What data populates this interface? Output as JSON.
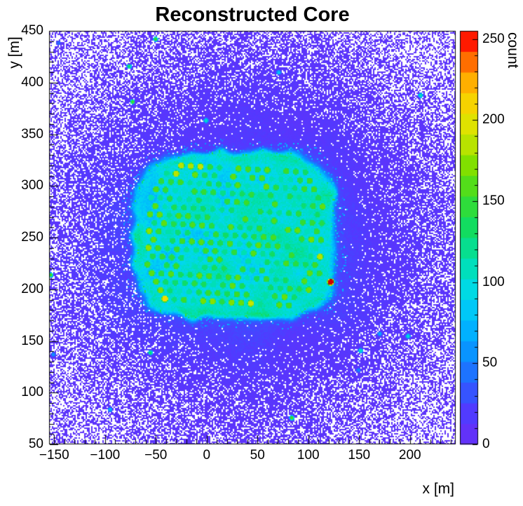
{
  "chart_data": {
    "type": "heatmap",
    "title": "Reconstructed Core",
    "xlabel": "x [m]",
    "ylabel": "y [m]",
    "zlabel": "count",
    "x_range": [
      -155,
      245
    ],
    "y_range": [
      50,
      450
    ],
    "z_range": [
      0,
      255
    ],
    "x_ticks": [
      {
        "v": -150,
        "label": "−150"
      },
      {
        "v": -100,
        "label": "−100"
      },
      {
        "v": -50,
        "label": "−50"
      },
      {
        "v": 0,
        "label": "0"
      },
      {
        "v": 50,
        "label": "50"
      },
      {
        "v": 100,
        "label": "100"
      },
      {
        "v": 150,
        "label": "150"
      },
      {
        "v": 200,
        "label": "200"
      }
    ],
    "y_ticks": [
      {
        "v": 50,
        "label": "50"
      },
      {
        "v": 100,
        "label": "100"
      },
      {
        "v": 150,
        "label": "150"
      },
      {
        "v": 200,
        "label": "200"
      },
      {
        "v": 250,
        "label": "250"
      },
      {
        "v": 300,
        "label": "300"
      },
      {
        "v": 350,
        "label": "350"
      },
      {
        "v": 400,
        "label": "400"
      },
      {
        "v": 450,
        "label": "450"
      }
    ],
    "z_ticks": [
      {
        "v": 0,
        "label": "0"
      },
      {
        "v": 50,
        "label": "50"
      },
      {
        "v": 100,
        "label": "100"
      },
      {
        "v": 150,
        "label": "150"
      },
      {
        "v": 200,
        "label": "200"
      },
      {
        "v": 250,
        "label": "250"
      }
    ],
    "minor_tick_step": 10,
    "z_minor_step": 10,
    "palette_bands": 20,
    "palette_stops": [
      {
        "t": 0.0,
        "color": "#6a2ef5"
      },
      {
        "t": 0.07,
        "color": "#5438ff"
      },
      {
        "t": 0.14,
        "color": "#2e5cff"
      },
      {
        "t": 0.21,
        "color": "#0b8bff"
      },
      {
        "t": 0.28,
        "color": "#00b4ff"
      },
      {
        "t": 0.36,
        "color": "#00d8f0"
      },
      {
        "t": 0.44,
        "color": "#00e0b0"
      },
      {
        "t": 0.52,
        "color": "#0fdc64"
      },
      {
        "t": 0.6,
        "color": "#3cdc28"
      },
      {
        "t": 0.67,
        "color": "#7ce000"
      },
      {
        "t": 0.74,
        "color": "#c8e400"
      },
      {
        "t": 0.8,
        "color": "#f0e000"
      },
      {
        "t": 0.86,
        "color": "#ffc000"
      },
      {
        "t": 0.91,
        "color": "#ff8800"
      },
      {
        "t": 0.95,
        "color": "#ff4400"
      },
      {
        "t": 0.98,
        "color": "#ff1100"
      },
      {
        "t": 1.0,
        "color": "#cc0000"
      }
    ],
    "generation": {
      "seed": 20240613,
      "background": {
        "base_count": 7,
        "jitter": 7,
        "halo_amp": 20,
        "center_x": 45,
        "center_y": 250,
        "white_speckle_slope": 0.75,
        "white_speckle_floor": 0.012,
        "white_speckle_max": 0.55
      },
      "cluster": {
        "cx": 28,
        "cy": 252,
        "a": 95,
        "b": 78,
        "exponent": 4,
        "interior_base": 50,
        "interior_var": 30,
        "ring_boost": 42
      },
      "grid": {
        "sx": 9.4,
        "sy": 8.1,
        "rotation_deg": -3,
        "dot_radius": 2.6,
        "count_min": 100,
        "count_max": 165,
        "rim_boost": 130,
        "missing_prob": 0.07,
        "inset": 7
      },
      "hot_spot": {
        "x": 122,
        "y": 207,
        "count": 255
      },
      "specks": {
        "n": 16,
        "count_min": 40,
        "count_max": 170
      }
    }
  }
}
